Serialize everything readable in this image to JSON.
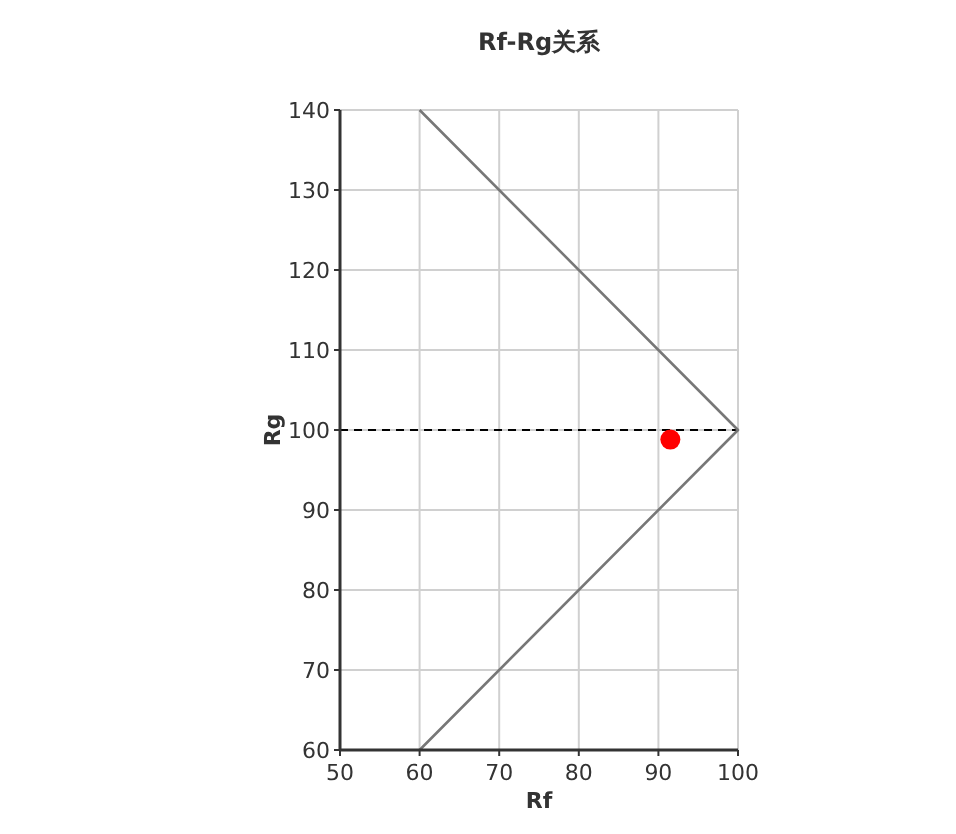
{
  "chart_data": {
    "type": "scatter",
    "title": "Rf-Rg关系",
    "xlabel": "Rf",
    "ylabel": "Rg",
    "xlim": [
      50,
      100
    ],
    "xticks": [
      50,
      60,
      70,
      80,
      90,
      100
    ],
    "ylim": [
      60,
      140
    ],
    "yticks": [
      60,
      70,
      80,
      90,
      100,
      110,
      120,
      130,
      140
    ],
    "grid": true,
    "series": [
      {
        "type": "line",
        "x": [
          60,
          100,
          60
        ],
        "values": [
          140,
          100,
          60
        ],
        "color": "#777777",
        "marker": "none",
        "line_style": "solid"
      },
      {
        "x": [
          91.5
        ],
        "values": [
          98.8
        ],
        "color": "#ff0000",
        "marker": "circle"
      }
    ],
    "ref_lines": [
      {
        "axis": "y",
        "value": 100,
        "color": "#000000",
        "line_style": "dashed"
      }
    ]
  }
}
